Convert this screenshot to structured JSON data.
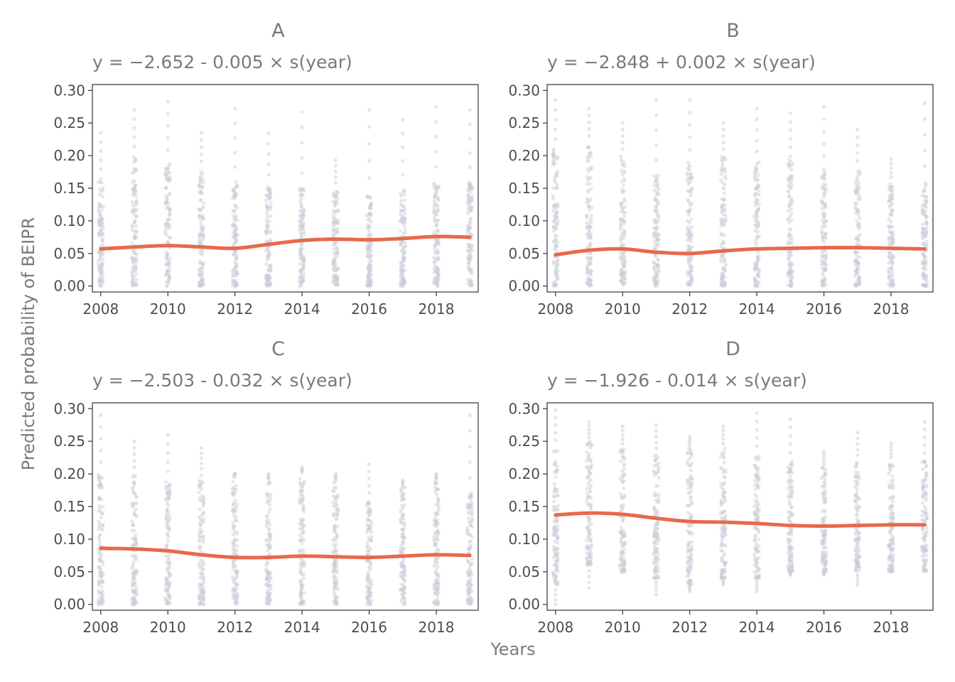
{
  "figure": {
    "xlabel": "Years",
    "ylabel": "Predicted probability of BEIPR"
  },
  "colors": {
    "points": "#c9cdd6",
    "trend": "#e8694a",
    "text": "#7a7a7a",
    "tick_text": "#4d4d4d",
    "frame": "#333333"
  },
  "chart_data": [
    {
      "type": "scatter",
      "title": "A",
      "subtitle": "y = −2.652 - 0.005 × s(year)",
      "xlim": [
        2007.75,
        2019.25
      ],
      "ylim": [
        -0.009,
        0.309
      ],
      "xticks": [
        "2008",
        "2010",
        "2012",
        "2014",
        "2016",
        "2018"
      ],
      "yticks": [
        "0.00",
        "0.05",
        "0.10",
        "0.15",
        "0.20",
        "0.25",
        "0.30"
      ],
      "points_by_year": {
        "x": [
          2008,
          2009,
          2010,
          2011,
          2012,
          2013,
          2014,
          2015,
          2016,
          2017,
          2018,
          2019
        ],
        "dense_range": [
          [
            0.0,
            0.165
          ],
          [
            0.0,
            0.2
          ],
          [
            0.0,
            0.19
          ],
          [
            0.0,
            0.18
          ],
          [
            0.0,
            0.16
          ],
          [
            0.0,
            0.155
          ],
          [
            0.0,
            0.15
          ],
          [
            0.0,
            0.15
          ],
          [
            0.0,
            0.14
          ],
          [
            0.0,
            0.15
          ],
          [
            0.0,
            0.16
          ],
          [
            0.0,
            0.16
          ]
        ],
        "max": [
          0.235,
          0.27,
          0.283,
          0.235,
          0.272,
          0.234,
          0.267,
          0.193,
          0.27,
          0.255,
          0.275,
          0.27
        ]
      },
      "trend": {
        "x": [
          2008,
          2009,
          2010,
          2011,
          2012,
          2013,
          2014,
          2015,
          2016,
          2017,
          2018,
          2019
        ],
        "y": [
          0.057,
          0.06,
          0.062,
          0.06,
          0.058,
          0.064,
          0.07,
          0.072,
          0.071,
          0.073,
          0.076,
          0.075
        ]
      }
    },
    {
      "type": "scatter",
      "title": "B",
      "subtitle": "y = −2.848 + 0.002 × s(year)",
      "xlim": [
        2007.75,
        2019.25
      ],
      "ylim": [
        -0.009,
        0.309
      ],
      "xticks": [
        "2008",
        "2010",
        "2012",
        "2014",
        "2016",
        "2018"
      ],
      "yticks": [
        "0.00",
        "0.05",
        "0.10",
        "0.15",
        "0.20",
        "0.25",
        "0.30"
      ],
      "points_by_year": {
        "x": [
          2008,
          2009,
          2010,
          2011,
          2012,
          2013,
          2014,
          2015,
          2016,
          2017,
          2018,
          2019
        ],
        "dense_range": [
          [
            0.0,
            0.21
          ],
          [
            0.0,
            0.22
          ],
          [
            0.0,
            0.2
          ],
          [
            0.0,
            0.17
          ],
          [
            0.0,
            0.19
          ],
          [
            0.0,
            0.2
          ],
          [
            0.0,
            0.19
          ],
          [
            0.0,
            0.2
          ],
          [
            0.0,
            0.18
          ],
          [
            0.0,
            0.18
          ],
          [
            0.0,
            0.16
          ],
          [
            0.0,
            0.16
          ]
        ],
        "max": [
          0.285,
          0.272,
          0.25,
          0.285,
          0.285,
          0.25,
          0.272,
          0.265,
          0.275,
          0.24,
          0.195,
          0.28
        ]
      },
      "trend": {
        "x": [
          2008,
          2009,
          2010,
          2011,
          2012,
          2013,
          2014,
          2015,
          2016,
          2017,
          2018,
          2019
        ],
        "y": [
          0.048,
          0.055,
          0.057,
          0.052,
          0.05,
          0.054,
          0.057,
          0.058,
          0.059,
          0.059,
          0.058,
          0.057
        ]
      }
    },
    {
      "type": "scatter",
      "title": "C",
      "subtitle": "y = −2.503 - 0.032 × s(year)",
      "xlim": [
        2007.75,
        2019.25
      ],
      "ylim": [
        -0.009,
        0.309
      ],
      "xticks": [
        "2008",
        "2010",
        "2012",
        "2014",
        "2016",
        "2018"
      ],
      "yticks": [
        "0.00",
        "0.05",
        "0.10",
        "0.15",
        "0.20",
        "0.25",
        "0.30"
      ],
      "points_by_year": {
        "x": [
          2008,
          2009,
          2010,
          2011,
          2012,
          2013,
          2014,
          2015,
          2016,
          2017,
          2018,
          2019
        ],
        "dense_range": [
          [
            0.0,
            0.2
          ],
          [
            0.0,
            0.2
          ],
          [
            0.0,
            0.19
          ],
          [
            0.0,
            0.2
          ],
          [
            0.0,
            0.2
          ],
          [
            0.0,
            0.19
          ],
          [
            0.0,
            0.2
          ],
          [
            0.0,
            0.19
          ],
          [
            0.0,
            0.16
          ],
          [
            0.0,
            0.18
          ],
          [
            0.0,
            0.19
          ],
          [
            0.0,
            0.17
          ]
        ],
        "max": [
          0.29,
          0.25,
          0.26,
          0.24,
          0.2,
          0.2,
          0.21,
          0.2,
          0.215,
          0.19,
          0.2,
          0.29
        ]
      },
      "trend": {
        "x": [
          2008,
          2009,
          2010,
          2011,
          2012,
          2013,
          2014,
          2015,
          2016,
          2017,
          2018,
          2019
        ],
        "y": [
          0.086,
          0.085,
          0.082,
          0.076,
          0.072,
          0.072,
          0.074,
          0.073,
          0.072,
          0.074,
          0.076,
          0.075
        ]
      }
    },
    {
      "type": "scatter",
      "title": "D",
      "subtitle": "y = −1.926 - 0.014 × s(year)",
      "xlim": [
        2007.75,
        2019.25
      ],
      "ylim": [
        -0.009,
        0.309
      ],
      "xticks": [
        "2008",
        "2010",
        "2012",
        "2014",
        "2016",
        "2018"
      ],
      "yticks": [
        "0.00",
        "0.05",
        "0.10",
        "0.15",
        "0.20",
        "0.25",
        "0.30"
      ],
      "points_by_year": {
        "x": [
          2008,
          2009,
          2010,
          2011,
          2012,
          2013,
          2014,
          2015,
          2016,
          2017,
          2018,
          2019
        ],
        "dense_range": [
          [
            0.03,
            0.24
          ],
          [
            0.06,
            0.25
          ],
          [
            0.05,
            0.24
          ],
          [
            0.04,
            0.23
          ],
          [
            0.03,
            0.24
          ],
          [
            0.04,
            0.24
          ],
          [
            0.04,
            0.23
          ],
          [
            0.05,
            0.22
          ],
          [
            0.05,
            0.21
          ],
          [
            0.05,
            0.22
          ],
          [
            0.05,
            0.22
          ],
          [
            0.05,
            0.22
          ]
        ],
        "min": [
          0.0,
          0.025,
          0.05,
          0.015,
          0.02,
          0.03,
          0.02,
          0.045,
          0.045,
          0.03,
          0.06,
          0.06
        ],
        "max": [
          0.298,
          0.28,
          0.273,
          0.275,
          0.257,
          0.273,
          0.293,
          0.284,
          0.235,
          0.263,
          0.247,
          0.28
        ]
      },
      "trend": {
        "x": [
          2008,
          2009,
          2010,
          2011,
          2012,
          2013,
          2014,
          2015,
          2016,
          2017,
          2018,
          2019
        ],
        "y": [
          0.137,
          0.14,
          0.138,
          0.132,
          0.127,
          0.126,
          0.124,
          0.121,
          0.12,
          0.121,
          0.122,
          0.122
        ]
      }
    }
  ]
}
